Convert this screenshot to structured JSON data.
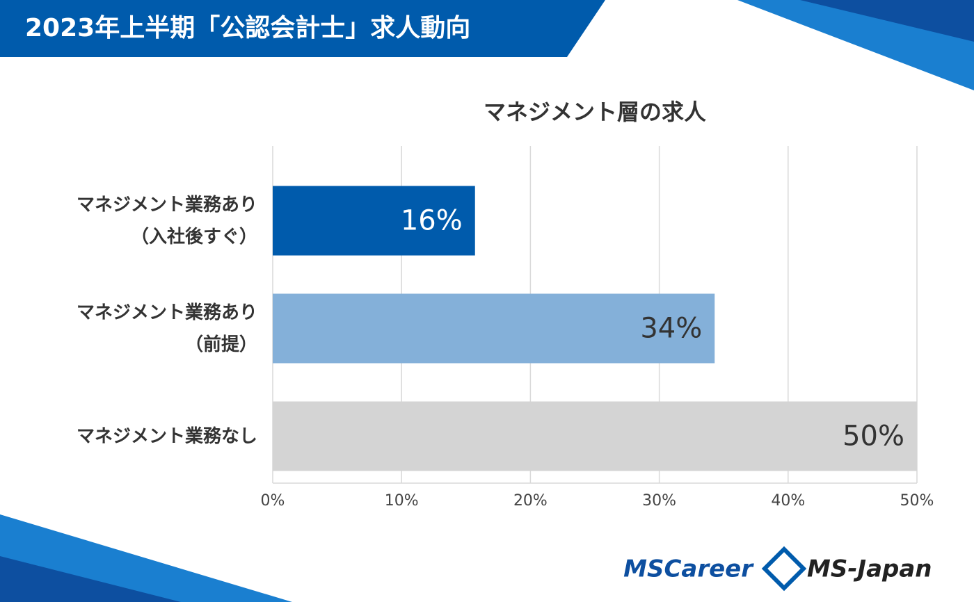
{
  "header": {
    "title": "2023年上半期「公認会計士」求人動向"
  },
  "chart_data": {
    "type": "bar",
    "orientation": "horizontal",
    "title": "マネジメント層の求人",
    "categories": [
      "マネジメント業務あり\n（入社後すぐ）",
      "マネジメント業務あり\n（前提）",
      "マネジメント業務なし"
    ],
    "values": [
      15.7,
      34.3,
      50
    ],
    "value_labels": [
      "16%",
      "34%",
      "50%"
    ],
    "colors": [
      "#005bac",
      "#84b0d9",
      "#d4d4d4"
    ],
    "xlim": [
      0,
      50
    ],
    "xticks": [
      {
        "value": 0,
        "label": "0%"
      },
      {
        "value": 10,
        "label": "10%"
      },
      {
        "value": 20,
        "label": "20%"
      },
      {
        "value": 30,
        "label": "30%"
      },
      {
        "value": 40,
        "label": "40%"
      },
      {
        "value": 50,
        "label": "50%"
      }
    ],
    "grid": true
  },
  "footer": {
    "logos": [
      "MSCareer",
      "MS-Japan"
    ]
  }
}
